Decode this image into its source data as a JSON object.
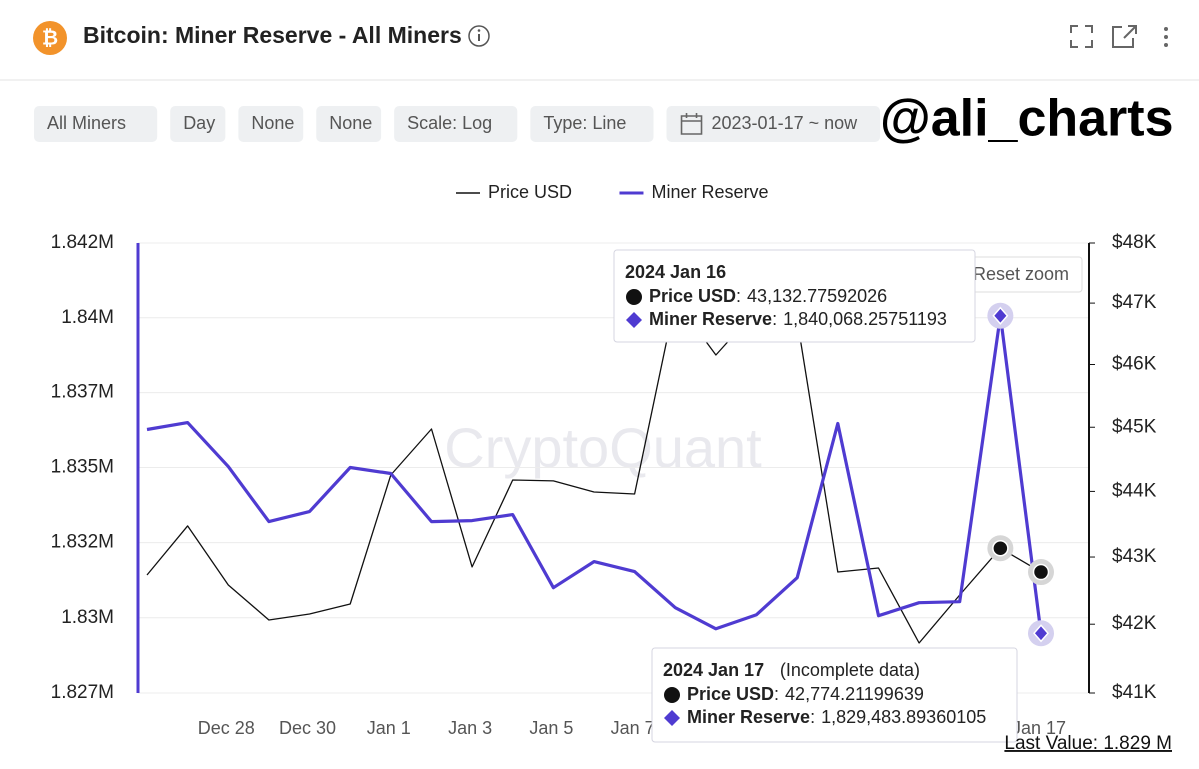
{
  "header": {
    "title": "Bitcoin: Miner Reserve - All Miners"
  },
  "filters": [
    "All Miners",
    "Day",
    "None",
    "None",
    "Scale: Log",
    "Type: Line",
    "2023-01-17 ~ now"
  ],
  "handle": "@ali_charts",
  "chart_data": {
    "type": "line",
    "watermark": "CryptoQuant",
    "legend": "top",
    "categories": [
      null,
      null,
      "Dec 28",
      null,
      "Dec 30",
      null,
      "Jan 1",
      null,
      "Jan 3",
      null,
      "Jan 5",
      null,
      "Jan 7",
      null,
      null,
      null,
      null,
      null,
      null,
      null,
      null,
      null,
      "Jan 17"
    ],
    "series": [
      {
        "name": "Price USD",
        "color": "#111111",
        "axis": "y2",
        "values": [
          42730,
          43471,
          42581,
          42062,
          42150,
          42298,
          44254,
          44973,
          42851,
          44176,
          44162,
          43990,
          43960,
          47052,
          46154,
          46888,
          46724,
          42775,
          42835,
          41724,
          42432,
          43132.77592026,
          42774.21199639
        ]
      },
      {
        "name": "Miner Reserve",
        "color": "#4f3bd1",
        "values": [
          1836267,
          1836500,
          1835033,
          1833200,
          1833533,
          1835000,
          1834800,
          1833200,
          1833233,
          1833433,
          1831000,
          1831867,
          1831533,
          1830333,
          1829633,
          1830100,
          1831333,
          1836467,
          1830067,
          1830500,
          1830533,
          1840068.25751193,
          1829483.89360105
        ]
      }
    ],
    "ylog": true,
    "ylim": [
      1827500,
      1842500
    ],
    "yticks": [
      {
        "value": 1827500,
        "label": "1.827M"
      },
      {
        "value": 1830000,
        "label": "1.83M"
      },
      {
        "value": 1832500,
        "label": "1.832M"
      },
      {
        "value": 1835000,
        "label": "1.835M"
      },
      {
        "value": 1837500,
        "label": "1.837M"
      },
      {
        "value": 1840000,
        "label": "1.84M"
      },
      {
        "value": 1842500,
        "label": "1.842M"
      }
    ],
    "y2log": true,
    "y2lim": [
      41000,
      48000
    ],
    "y2ticks": [
      {
        "value": 41000,
        "label": "$41K"
      },
      {
        "value": 42000,
        "label": "$42K"
      },
      {
        "value": 43000,
        "label": "$43K"
      },
      {
        "value": 44000,
        "label": "$44K"
      },
      {
        "value": 45000,
        "label": "$45K"
      },
      {
        "value": 46000,
        "label": "$46K"
      },
      {
        "value": 47000,
        "label": "$47K"
      },
      {
        "value": 48000,
        "label": "$48K"
      }
    ],
    "grid": true,
    "reset_zoom": "Reset zoom",
    "tooltips": [
      {
        "title": "2024 Jan 16",
        "rows": [
          "43,132.77592026",
          "1,840,068.25751193"
        ]
      },
      {
        "title": "2024 Jan 17",
        "note": "(Incomplete data)",
        "rows": [
          "42,774.21199639",
          "1,829,483.89360105"
        ]
      }
    ],
    "last_value": "Last Value: 1.829 M"
  }
}
